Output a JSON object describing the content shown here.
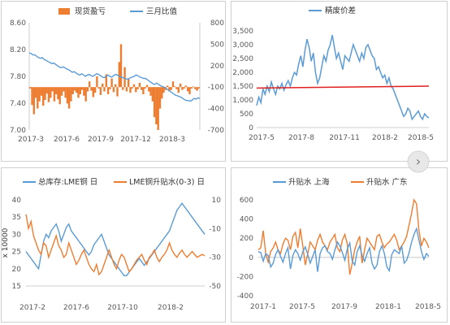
{
  "page": {
    "nav_arrow": "›",
    "nav_icon": "chevron-right-icon"
  },
  "chart_data": [
    {
      "type": "bar+line",
      "legend": [
        "现货盈亏",
        "三月比值"
      ],
      "x_ticks": [
        "2017-3",
        "2017-6",
        "2017-9",
        "2017-12",
        "2018-3"
      ],
      "y_left": {
        "min": 7.0,
        "max": 8.6,
        "ticks": [
          "8.60",
          "8.20",
          "7.80",
          "7.40",
          "7.00"
        ],
        "tick_values": [
          8.6,
          8.2,
          7.8,
          7.4,
          7.0
        ]
      },
      "y_right": {
        "min": -700,
        "max": 800,
        "ticks": [
          "800",
          "500",
          "200",
          "-100",
          "-400",
          "-700"
        ],
        "tick_values": [
          800,
          500,
          200,
          -100,
          -400,
          -700
        ]
      },
      "colors": {
        "bars": "#ed7d31",
        "line": "#5b9bd5"
      },
      "series": [
        {
          "name": "现货盈亏",
          "axis": "right",
          "kind": "bar",
          "values": [
            -20,
            -250,
            -380,
            -150,
            -300,
            -200,
            -120,
            -260,
            -180,
            -90,
            -210,
            -150,
            -60,
            -200,
            -100,
            -170,
            -240,
            -120,
            -60,
            -150,
            -230,
            -300,
            -200,
            -100,
            -50,
            -80,
            -150,
            -100,
            -40,
            -120,
            -200,
            -60,
            80,
            -50,
            -140,
            -80,
            150,
            -20,
            -110,
            50,
            -60,
            180,
            -100,
            -30,
            120,
            -70,
            40,
            -130,
            350,
            600,
            -40,
            280,
            -60,
            120,
            -80,
            -20,
            40,
            -70,
            -30,
            60,
            -40,
            -100,
            -20,
            30,
            -60,
            -120,
            -200,
            -420,
            -520,
            -600,
            -300,
            -160,
            -80,
            -40,
            20,
            -60,
            -40,
            80,
            10,
            -30,
            -80,
            50,
            -40,
            -20,
            20,
            -60,
            -100,
            -20,
            10,
            -30,
            -50,
            -20
          ]
        },
        {
          "name": "三月比值",
          "axis": "left",
          "kind": "line",
          "values": [
            8.15,
            8.14,
            8.12,
            8.12,
            8.1,
            8.08,
            8.07,
            8.08,
            8.05,
            8.04,
            8.02,
            8.01,
            7.99,
            8.0,
            7.98,
            7.96,
            7.94,
            7.93,
            7.94,
            7.93,
            7.91,
            7.9,
            7.88,
            7.86,
            7.87,
            7.85,
            7.83,
            7.82,
            7.84,
            7.82,
            7.8,
            7.82,
            7.83,
            7.81,
            7.8,
            7.82,
            7.84,
            7.83,
            7.81,
            7.79,
            7.78,
            7.8,
            7.82,
            7.8,
            7.79,
            7.81,
            7.83,
            7.82,
            7.8,
            7.79,
            7.78,
            7.77,
            7.76,
            7.76,
            7.78,
            7.79,
            7.8,
            7.82,
            7.81,
            7.79,
            7.78,
            7.77,
            7.77,
            7.75,
            7.73,
            7.71,
            7.69,
            7.68,
            7.7,
            7.68,
            7.66,
            7.65,
            7.64,
            7.62,
            7.6,
            7.58,
            7.56,
            7.54,
            7.52,
            7.51,
            7.5,
            7.49,
            7.47,
            7.45,
            7.44,
            7.44,
            7.43,
            7.45,
            7.47,
            7.46,
            7.48,
            7.47
          ]
        }
      ]
    },
    {
      "type": "line",
      "legend": [
        "精废价差"
      ],
      "x_ticks": [
        "2017-5",
        "2017-8",
        "2017-11",
        "2018-2",
        "2018-5"
      ],
      "y": {
        "min": 0,
        "max": 3500,
        "ticks": [
          "3,500",
          "3,000",
          "2,500",
          "2,000",
          "1,500",
          "1,000",
          "500",
          "0"
        ],
        "tick_values": [
          3500,
          3000,
          2500,
          2000,
          1500,
          1000,
          500,
          0
        ]
      },
      "colors": {
        "line": "#5b9bd5",
        "trend": "#e02020"
      },
      "series": [
        {
          "name": "精废价差",
          "values": [
            800,
            1100,
            900,
            1400,
            1200,
            1500,
            1300,
            1650,
            1400,
            1200,
            1500,
            1400,
            1600,
            1350,
            1550,
            1700,
            1500,
            1800,
            2000,
            1900,
            2300,
            2600,
            2200,
            2800,
            3200,
            2900,
            2400,
            2700,
            2000,
            1600,
            1800,
            2200,
            2600,
            2400,
            2800,
            3000,
            3350,
            2900,
            2500,
            2700,
            2400,
            2100,
            2600,
            2500,
            2400,
            2700,
            3000,
            2800,
            2600,
            2400,
            2700,
            2500,
            2900,
            3000,
            2800,
            2600,
            2500,
            2100,
            2200,
            2000,
            1800,
            1900,
            1600,
            1800,
            1500,
            1400,
            1200,
            1000,
            800,
            600,
            400,
            500,
            700,
            600,
            300,
            400,
            500,
            600,
            400,
            300,
            500,
            400,
            350
          ]
        },
        {
          "name": "",
          "kind": "trend",
          "values": [
            1430,
            1500
          ]
        }
      ]
    },
    {
      "type": "line",
      "legend": [
        "总库存:LME铜 日",
        "LME铜升贴水(0-3) 日"
      ],
      "x_ticks": [
        "2017-2",
        "2017-6",
        "2017-10",
        "2018-2"
      ],
      "ylabel": "x 10000",
      "y_left": {
        "min": 15,
        "max": 40,
        "ticks": [
          "40",
          "35",
          "30",
          "25",
          "20",
          "15"
        ],
        "tick_values": [
          40,
          35,
          30,
          25,
          20,
          15
        ]
      },
      "y_right": {
        "min": -50,
        "max": 10,
        "ticks": [
          "10",
          "-10",
          "-30",
          "-50"
        ],
        "tick_values": [
          10,
          -10,
          -30,
          -50
        ]
      },
      "colors": {
        "inventory": "#5b9bd5",
        "spread": "#ed7d31"
      },
      "series": [
        {
          "name": "总库存:LME铜 日",
          "axis": "left",
          "values": [
            25,
            24,
            23,
            22,
            21,
            20,
            24,
            28,
            30,
            29,
            31,
            32,
            33,
            31,
            28,
            30,
            32,
            33,
            31,
            30,
            29,
            28,
            27,
            26,
            25,
            24,
            25,
            27,
            28,
            29,
            30,
            28,
            26,
            24,
            23,
            22,
            21,
            20,
            19,
            18,
            18,
            19,
            20,
            21,
            22,
            23,
            22,
            21,
            22,
            23,
            24,
            25,
            26,
            27,
            28,
            29,
            30,
            31,
            33,
            35,
            37,
            38,
            39,
            38,
            37,
            36,
            35,
            34,
            33,
            32,
            31,
            30
          ]
        },
        {
          "name": "LME铜升贴水(0-3) 日",
          "axis": "right",
          "values": [
            0,
            -10,
            -5,
            -15,
            -20,
            -25,
            -28,
            -20,
            -22,
            -30,
            -25,
            -20,
            -15,
            -22,
            -25,
            -30,
            -28,
            -20,
            -25,
            -30,
            -35,
            -32,
            -28,
            -25,
            -30,
            -35,
            -38,
            -40,
            -35,
            -42,
            -40,
            -35,
            -30,
            -25,
            -30,
            -35,
            -38,
            -32,
            -28,
            -30,
            -35,
            -40,
            -38,
            -35,
            -32,
            -30,
            -28,
            -32,
            -35,
            -30,
            -28,
            -25,
            -30,
            -33,
            -30,
            -28,
            -25,
            -20,
            -25,
            -28,
            -30,
            -27,
            -25,
            -28,
            -30,
            -28,
            -26,
            -28,
            -30,
            -29,
            -28,
            -29
          ]
        }
      ]
    },
    {
      "type": "line",
      "legend": [
        "升贴水 上海",
        "升贴水 广东"
      ],
      "x_ticks": [
        "2017-1",
        "2017-5",
        "2017-9",
        "2018-1",
        "2018-5"
      ],
      "y": {
        "min": -400,
        "max": 600,
        "ticks": [
          "600",
          "400",
          "200",
          "0",
          "-200",
          "-400"
        ],
        "tick_values": [
          600,
          400,
          200,
          0,
          -200,
          -400
        ]
      },
      "colors": {
        "shanghai": "#5b9bd5",
        "guangdong": "#ed7d31"
      },
      "series": [
        {
          "name": "升贴水 上海",
          "values": [
            60,
            50,
            -40,
            40,
            20,
            -100,
            -60,
            30,
            80,
            10,
            -50,
            40,
            100,
            -120,
            20,
            80,
            40,
            -30,
            60,
            110,
            30,
            -60,
            10,
            80,
            -150,
            40,
            100,
            120,
            60,
            40,
            -20,
            80,
            160,
            120,
            50,
            -30,
            90,
            150,
            -40,
            -80,
            60,
            120,
            20,
            -40,
            40,
            100,
            -60,
            -120,
            -80,
            60,
            120,
            40,
            -100,
            -140,
            30,
            80,
            60,
            40,
            120,
            -60,
            -30,
            50,
            160,
            240,
            300,
            180,
            60,
            -20,
            40,
            10
          ]
        },
        {
          "name": "升贴水 广东",
          "values": [
            80,
            100,
            280,
            40,
            -50,
            60,
            100,
            160,
            80,
            40,
            140,
            200,
            180,
            80,
            220,
            260,
            100,
            300,
            120,
            -80,
            40,
            160,
            120,
            80,
            180,
            240,
            160,
            120,
            80,
            160,
            200,
            240,
            100,
            60,
            180,
            240,
            140,
            -180,
            -60,
            80,
            160,
            220,
            -60,
            80,
            200,
            160,
            120,
            80,
            220,
            240,
            160,
            100,
            140,
            160,
            200,
            240,
            180,
            80,
            120,
            160,
            220,
            340,
            460,
            600,
            560,
            280,
            120,
            200,
            160,
            100
          ]
        }
      ]
    }
  ]
}
